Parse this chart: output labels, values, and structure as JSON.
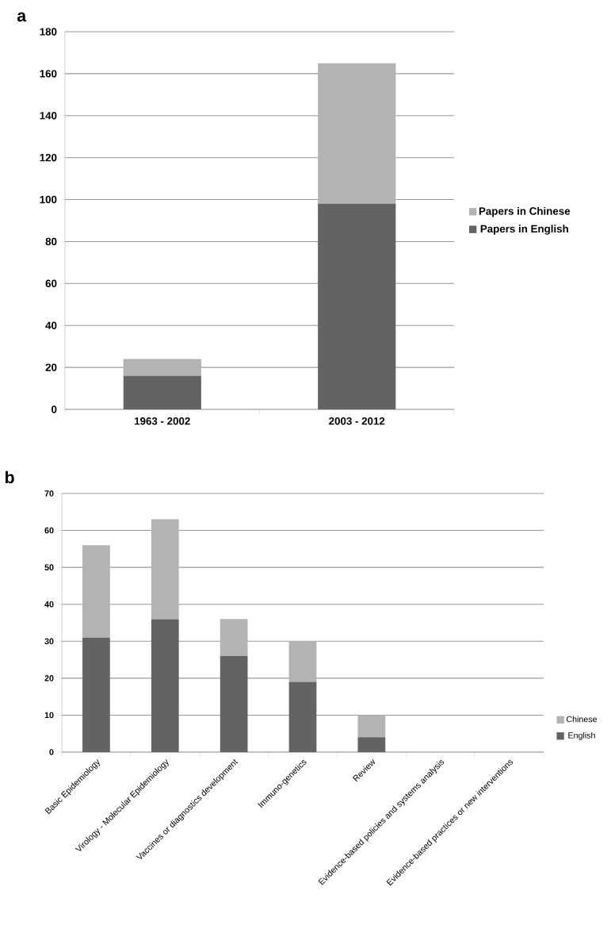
{
  "chart_data": [
    {
      "type": "bar",
      "title": "a",
      "categories": [
        "1963 - 2002",
        "2003 - 2012"
      ],
      "stacked": true,
      "ylim": [
        0,
        180
      ],
      "yticks": [
        0,
        20,
        40,
        60,
        80,
        100,
        120,
        140,
        160,
        180
      ],
      "grid": "y",
      "legend": "right",
      "series": [
        {
          "name": "Papers in English",
          "color": "#636363",
          "values": [
            16,
            98
          ]
        },
        {
          "name": "Papers in Chinese",
          "color": "#b3b3b3",
          "values": [
            8,
            67
          ]
        }
      ]
    },
    {
      "type": "bar",
      "title": "b",
      "categories": [
        "Basic Epidemiology",
        "Virology - Molecular Epidemiology",
        "Vaccines or diagnostics development",
        "Immuno-genetics",
        "Review",
        "Evidence-based policies and systems analysis",
        "Evidence-based practices or new interventions"
      ],
      "stacked": true,
      "ylim": [
        0,
        70
      ],
      "yticks": [
        0,
        10,
        20,
        30,
        40,
        50,
        60,
        70
      ],
      "grid": "y",
      "legend": "bottom right",
      "series": [
        {
          "name": "English",
          "color": "#636363",
          "values": [
            31,
            36,
            26,
            19,
            4,
            0,
            0
          ]
        },
        {
          "name": "Chinese",
          "color": "#b3b3b3",
          "values": [
            25,
            27,
            10,
            11,
            6,
            0,
            0
          ]
        }
      ]
    }
  ]
}
